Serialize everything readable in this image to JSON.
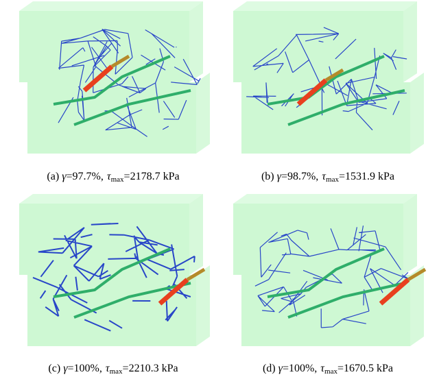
{
  "panels": [
    {
      "label": "(a)",
      "gamma": "γ",
      "strain": "=97.7%,",
      "tau": "τ",
      "sub": "max",
      "stress": "=2178.7 kPa"
    },
    {
      "label": "(b)",
      "gamma": "γ",
      "strain": "=98.7%,",
      "tau": "τ",
      "sub": "max",
      "stress": "=1531.9 kPa"
    },
    {
      "label": "(c)",
      "gamma": "γ",
      "strain": "=100%,",
      "tau": "τ",
      "sub": "max",
      "stress": "=2210.3 kPa"
    },
    {
      "label": "(d)",
      "gamma": "γ",
      "strain": "=100%,",
      "tau": "τ",
      "sub": "max",
      "stress": "=1670.5 kPa"
    }
  ]
}
